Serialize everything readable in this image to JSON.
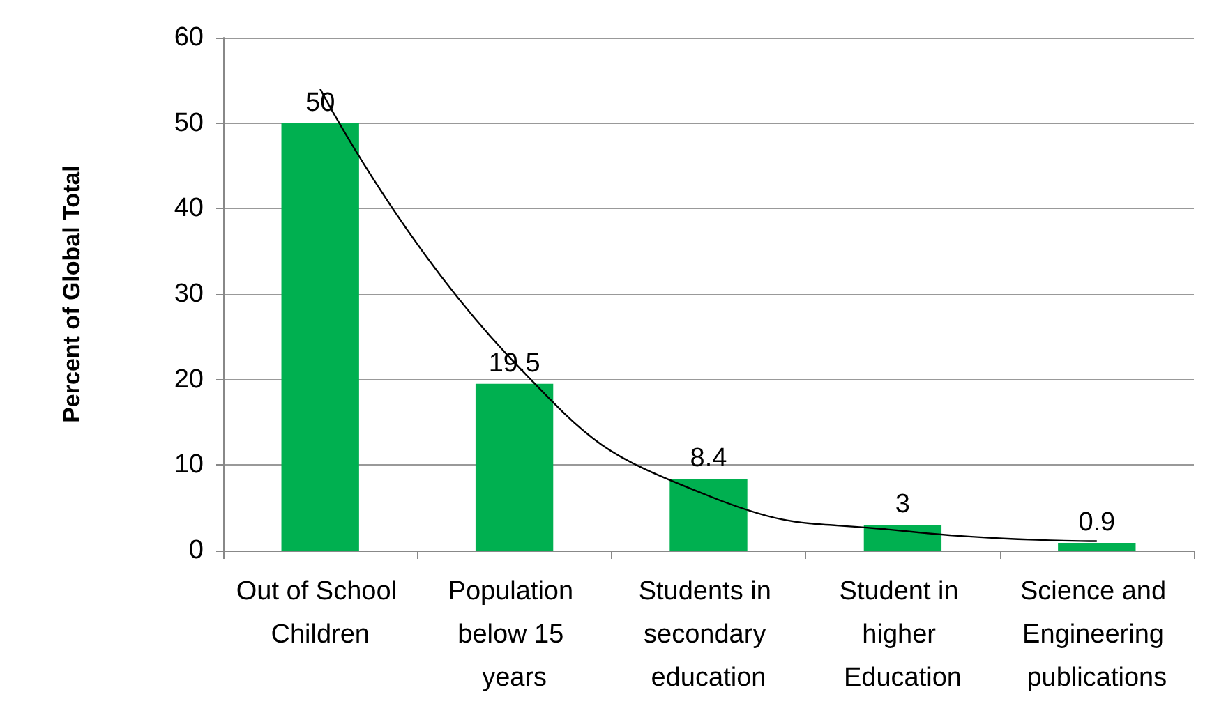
{
  "chart_data": {
    "type": "bar",
    "ylabel": "Percent of Global Total",
    "categories": [
      "Out of School Children",
      "Population below 15 years",
      "Students in secondary education",
      "Student in higher Education",
      "Science and Engineering publications"
    ],
    "values": [
      50,
      19.5,
      8.4,
      3,
      0.9
    ],
    "color": "#00b050",
    "value_labels": [
      "50",
      "19.5",
      "8.4",
      "3",
      "0.9"
    ],
    "ylim": [
      0,
      60
    ],
    "yticks": [
      0,
      10,
      20,
      30,
      40,
      50,
      60
    ],
    "grid": "y",
    "series": [
      {
        "type": "line",
        "color": "#000000",
        "x": [
          "Out of School Children",
          "Population below 15 years",
          "Students in secondary education",
          "Student in higher Education",
          "Science and Engineering publications"
        ],
        "values": [
          54,
          22,
          6.4,
          2.3,
          1.1
        ]
      }
    ]
  }
}
